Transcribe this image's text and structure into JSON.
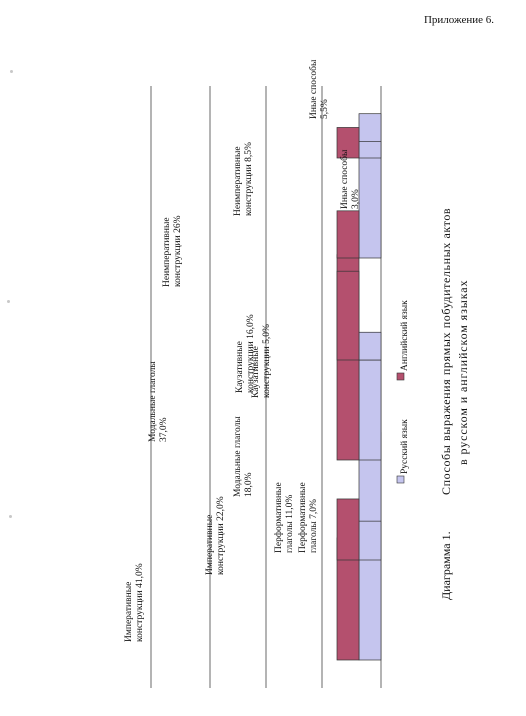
{
  "page": {
    "appendix": "Приложение 6."
  },
  "chart_data": {
    "type": "bar",
    "orientation": "rotated 90 degrees counter-clockwise on the page",
    "caption": {
      "number": "Диаграмма 1.",
      "line1": "Способы выражения прямых побудительных актов",
      "line2": "в русском и английском языках"
    },
    "categories": [
      "Императивные конструкции",
      "Перформативные глаголы",
      "Модальные глаголы",
      "Каузативные конструкции",
      "Неимперативные конструкции",
      "Иные способы"
    ],
    "series": [
      {
        "name": "Русский язык",
        "color": "#c5c5ee",
        "values": [
          41.0,
          7.0,
          18.0,
          5.0,
          26.0,
          3.0
        ],
        "labels": [
          "Императивные конструкции 41,0%",
          "Перформативные глаголы 7,0%",
          "Модальные глаголы 18,0%",
          "Каузативные конструкции 5,0%",
          "Неимперативные конструкции 26%",
          "Иные способы 3,0%"
        ]
      },
      {
        "name": "Английский язык",
        "color": "#b4506e",
        "values": [
          22.0,
          11.0,
          37.0,
          16.0,
          8.5,
          5.5
        ],
        "labels": [
          "Императивные конструкции 22,0%",
          "Перформативные глаголы 11,0%",
          "Модальные глаголы 37,0%",
          "Каузативные конструкции 16,0%",
          "Неимперативные конструкции 8,5%",
          "Иные способы 5,5%"
        ]
      }
    ],
    "ylim": [
      0,
      45
    ],
    "grid": true,
    "legend_placement": "bottom"
  }
}
